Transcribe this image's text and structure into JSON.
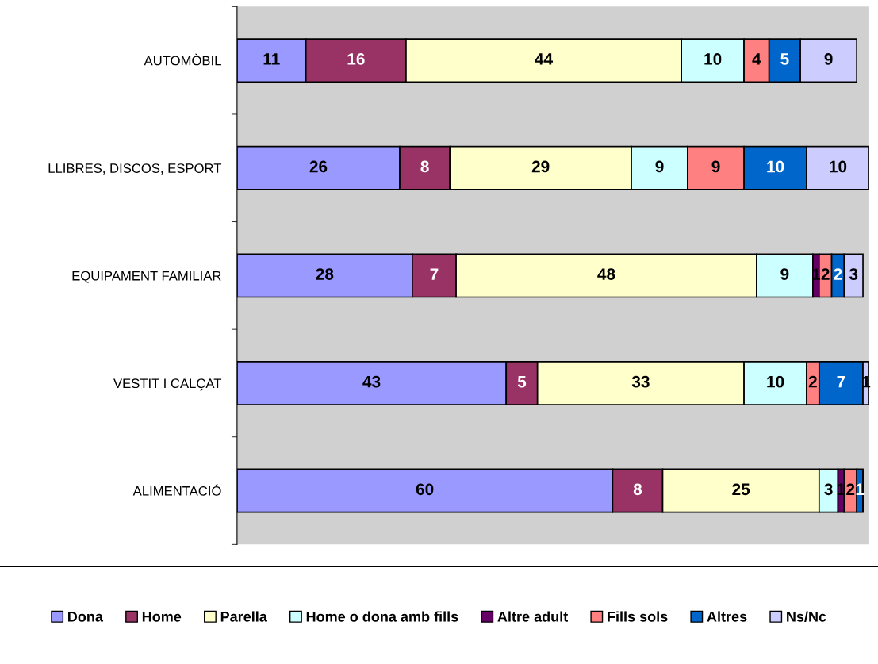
{
  "chart_data": {
    "type": "bar",
    "orientation": "horizontal",
    "stacked": true,
    "data_labels": true,
    "legend": "bottom",
    "grid": false,
    "categories": [
      "AUTOMÒBIL",
      "LLIBRES, DISCOS, ESPORT",
      "EQUIPAMENT FAMILIAR",
      "VESTIT I CALÇAT",
      "ALIMENTACIÓ"
    ],
    "series": [
      {
        "name": "Dona",
        "color": "#9999ff",
        "values": [
          11,
          26,
          28,
          43,
          60
        ]
      },
      {
        "name": "Home",
        "color": "#993366",
        "values": [
          16,
          8,
          7,
          5,
          8
        ]
      },
      {
        "name": "Parella",
        "color": "#ffffcc",
        "values": [
          44,
          29,
          48,
          33,
          25
        ]
      },
      {
        "name": "Home o dona amb fills",
        "color": "#ccffff",
        "values": [
          10,
          9,
          9,
          10,
          3
        ]
      },
      {
        "name": "Altre adult",
        "color": "#660066",
        "values": [
          null,
          null,
          1,
          null,
          1
        ]
      },
      {
        "name": "Fills sols",
        "color": "#ff8080",
        "values": [
          4,
          9,
          2,
          2,
          2
        ]
      },
      {
        "name": "Altres",
        "color": "#0066cc",
        "values": [
          5,
          10,
          2,
          7,
          1
        ]
      },
      {
        "name": "Ns/Nc",
        "color": "#ccccff",
        "values": [
          9,
          10,
          3,
          1,
          null
        ]
      }
    ]
  }
}
